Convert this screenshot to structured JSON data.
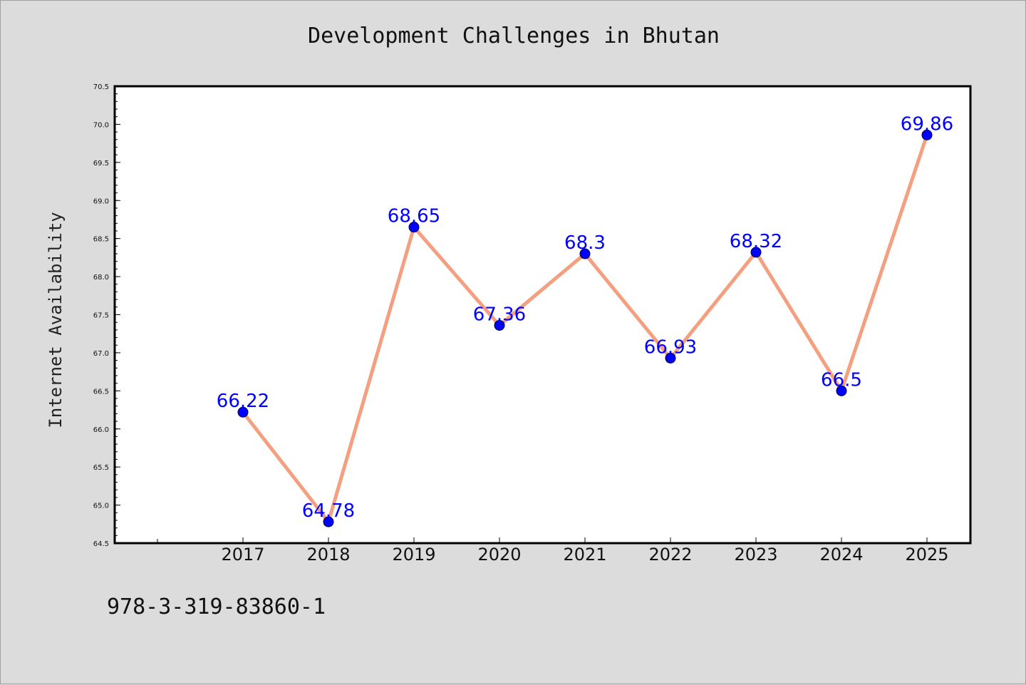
{
  "chart_data": {
    "type": "line",
    "title": "Development Challenges in Bhutan",
    "xlabel": "",
    "ylabel": "Internet Availability",
    "categories": [
      "2017",
      "2018",
      "2019",
      "2020",
      "2021",
      "2022",
      "2023",
      "2024",
      "2025"
    ],
    "series": [
      {
        "values": [
          66.22,
          64.78,
          68.65,
          67.36,
          68.3,
          66.93,
          68.32,
          66.5,
          69.86
        ],
        "labels": [
          "66.22",
          "64.78",
          "68.65",
          "67.36",
          "68.3",
          "66.93",
          "68.32",
          "66.5",
          "69.86"
        ]
      }
    ],
    "ylim": [
      64.5,
      70.5
    ],
    "yticks": [
      "64.5",
      "65.0",
      "65.5",
      "66.0",
      "66.5",
      "67.0",
      "67.5",
      "68.0",
      "68.5",
      "69.0",
      "69.5",
      "70.0",
      "70.5"
    ],
    "grid": false,
    "legend": "none",
    "colors": {
      "line": "#f4a080",
      "marker": "#0000ff",
      "label": "#0000ff",
      "plot_background": "#ffffff",
      "figure_background": "#dcdcdc"
    }
  },
  "footer": {
    "code": "978-3-319-83860-1"
  }
}
